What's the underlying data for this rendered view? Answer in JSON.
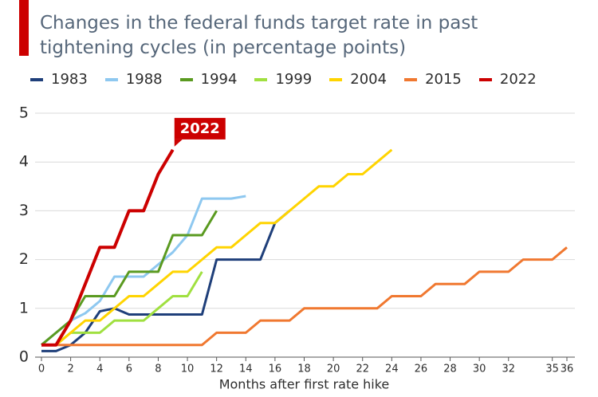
{
  "chart_data": {
    "type": "line",
    "title": "Changes in the federal funds target rate in past tightening cycles (in percentage points)",
    "xlabel": "Months after first rate hike",
    "x": [
      0,
      1,
      2,
      3,
      4,
      5,
      6,
      7,
      8,
      9,
      10,
      11,
      12,
      13,
      14,
      15,
      16,
      17,
      18,
      19,
      20,
      21,
      22,
      23,
      24,
      25,
      26,
      27,
      28,
      29,
      30,
      31,
      32,
      33,
      34,
      35,
      36
    ],
    "xlim": [
      0,
      36
    ],
    "xticks": [
      0,
      2,
      4,
      6,
      8,
      10,
      12,
      14,
      16,
      18,
      20,
      22,
      24,
      26,
      28,
      30,
      32,
      35,
      36
    ],
    "ylim": [
      0,
      5
    ],
    "yticks": [
      0,
      1,
      2,
      3,
      4,
      5
    ],
    "grid": true,
    "series": [
      {
        "name": "1983",
        "color": "#1f3f7a",
        "values": [
          0.125,
          0.125,
          0.25,
          0.5,
          0.94,
          1.0,
          0.875,
          0.875,
          0.875,
          0.875,
          0.875,
          0.875,
          2.0,
          2.0,
          2.0,
          2.0,
          2.75,
          3.0,
          null,
          null,
          null,
          null,
          null,
          null,
          null,
          null,
          null,
          null,
          null,
          null,
          null,
          null,
          null,
          null,
          null,
          null,
          null
        ]
      },
      {
        "name": "1988",
        "color": "#8ec8f0",
        "values": [
          0.25,
          0.5,
          0.75,
          0.9,
          1.15,
          1.65,
          1.65,
          1.65,
          1.9,
          2.15,
          2.5,
          3.25,
          3.25,
          3.25,
          3.3,
          null,
          null,
          null,
          null,
          null,
          null,
          null,
          null,
          null,
          null,
          null,
          null,
          null,
          null,
          null,
          null,
          null,
          null,
          null,
          null,
          null,
          null
        ]
      },
      {
        "name": "1994",
        "color": "#5a9a20",
        "values": [
          0.25,
          0.5,
          0.75,
          1.25,
          1.25,
          1.25,
          1.75,
          1.75,
          1.75,
          2.5,
          2.5,
          2.5,
          3.0,
          null,
          null,
          null,
          null,
          null,
          null,
          null,
          null,
          null,
          null,
          null,
          null,
          null,
          null,
          null,
          null,
          null,
          null,
          null,
          null,
          null,
          null,
          null,
          null
        ]
      },
      {
        "name": "1999",
        "color": "#a0e040",
        "values": [
          0.25,
          0.25,
          0.5,
          0.5,
          0.5,
          0.75,
          0.75,
          0.75,
          1.0,
          1.25,
          1.25,
          1.75,
          null,
          null,
          null,
          null,
          null,
          null,
          null,
          null,
          null,
          null,
          null,
          null,
          null,
          null,
          null,
          null,
          null,
          null,
          null,
          null,
          null,
          null,
          null,
          null,
          null
        ]
      },
      {
        "name": "2004",
        "color": "#ffd400",
        "values": [
          0.25,
          0.25,
          0.5,
          0.75,
          0.75,
          1.0,
          1.25,
          1.25,
          1.5,
          1.75,
          1.75,
          2.0,
          2.25,
          2.25,
          2.5,
          2.75,
          2.75,
          3.0,
          3.25,
          3.5,
          3.5,
          3.75,
          3.75,
          4.0,
          4.25,
          null,
          null,
          null,
          null,
          null,
          null,
          null,
          null,
          null,
          null,
          null,
          null
        ]
      },
      {
        "name": "2015",
        "color": "#f07830",
        "values": [
          0.25,
          0.25,
          0.25,
          0.25,
          0.25,
          0.25,
          0.25,
          0.25,
          0.25,
          0.25,
          0.25,
          0.25,
          0.5,
          0.5,
          0.5,
          0.75,
          0.75,
          0.75,
          1.0,
          1.0,
          1.0,
          1.0,
          1.0,
          1.0,
          1.25,
          1.25,
          1.25,
          1.5,
          1.5,
          1.5,
          1.75,
          1.75,
          1.75,
          2.0,
          2.0,
          2.0,
          2.25
        ]
      },
      {
        "name": "2022",
        "color": "#cc0000",
        "values": [
          0.25,
          0.25,
          0.75,
          1.5,
          2.25,
          2.25,
          3.0,
          3.0,
          3.75,
          4.25,
          null,
          null,
          null,
          null,
          null,
          null,
          null,
          null,
          null,
          null,
          null,
          null,
          null,
          null,
          null,
          null,
          null,
          null,
          null,
          null,
          null,
          null,
          null,
          null,
          null,
          null,
          null
        ]
      }
    ],
    "annotation": {
      "text": "2022",
      "color": "#cc0000"
    }
  }
}
